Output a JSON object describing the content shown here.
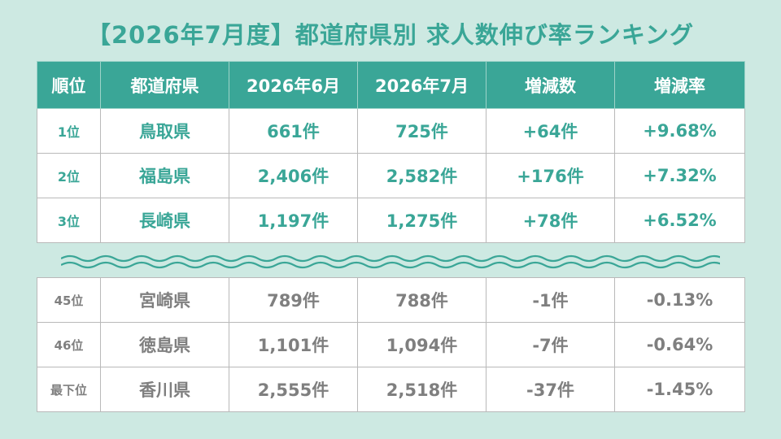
{
  "title": "【2026年7月度】都道府県別 求人数伸び率ランキング",
  "headers": [
    "順位",
    "都道府県",
    "2026年6月",
    "2026年7月",
    "増減数",
    "増減率"
  ],
  "top_rows": [
    [
      "1位",
      "鳥取県",
      "661件",
      "725件",
      "+64件",
      "+9.68%"
    ],
    [
      "2位",
      "福島県",
      "2,406件",
      "2,582件",
      "+176件",
      "+7.32%"
    ],
    [
      "3位",
      "長崎県",
      "1,197件",
      "1,275件",
      "+78件",
      "+6.52%"
    ]
  ],
  "bottom_rows": [
    [
      "45位",
      "宮崎県",
      "789件",
      "788件",
      "-1件",
      "-0.13%"
    ],
    [
      "46位",
      "徳島県",
      "1,101件",
      "1,094件",
      "-7件",
      "-0.64%"
    ],
    [
      "最下位",
      "香川県",
      "2,555件",
      "2,518件",
      "-37件",
      "-1.45%"
    ]
  ],
  "colors": {
    "accent": "#3aa697",
    "background": "#cde9e2",
    "muted_text": "#7f7f7f"
  }
}
